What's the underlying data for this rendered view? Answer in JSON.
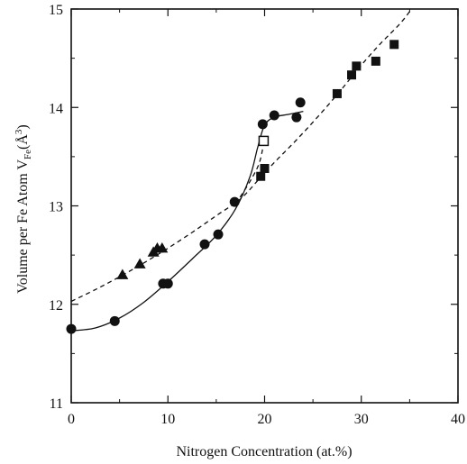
{
  "chart_data": {
    "type": "scatter",
    "title": "",
    "xlabel": "Nitrogen Concentration (at.%)",
    "ylabel_main": "Volume per Fe Atom V",
    "ylabel_sub": "Fe",
    "ylabel_unit": "(Å",
    "ylabel_sup": "3",
    "ylabel_close": ")",
    "xlim": [
      0,
      40
    ],
    "ylim": [
      11,
      15
    ],
    "x_ticks": [
      "0",
      "10",
      "20",
      "30",
      "40"
    ],
    "y_ticks": [
      "11",
      "12",
      "13",
      "14",
      "15"
    ],
    "grid": false,
    "legend": "none",
    "colors": {
      "ink": "#111111"
    },
    "series": [
      {
        "marker": "circle",
        "points": [
          [
            0.0,
            11.75
          ],
          [
            4.5,
            11.83
          ],
          [
            9.5,
            12.21
          ],
          [
            10.0,
            12.21
          ],
          [
            13.8,
            12.61
          ],
          [
            15.2,
            12.71
          ],
          [
            16.9,
            13.04
          ],
          [
            19.8,
            13.83
          ],
          [
            21.0,
            13.92
          ],
          [
            23.3,
            13.9
          ],
          [
            23.7,
            14.05
          ]
        ]
      },
      {
        "marker": "triangle",
        "points": [
          [
            5.3,
            12.3
          ],
          [
            7.1,
            12.41
          ],
          [
            8.5,
            12.53
          ],
          [
            8.9,
            12.57
          ],
          [
            9.4,
            12.57
          ]
        ]
      },
      {
        "marker": "square",
        "points": [
          [
            19.6,
            13.3
          ],
          [
            20.0,
            13.38
          ],
          [
            27.5,
            14.14
          ],
          [
            29.0,
            14.33
          ],
          [
            29.5,
            14.42
          ],
          [
            31.5,
            14.47
          ],
          [
            33.4,
            14.64
          ]
        ]
      },
      {
        "marker": "open-square",
        "points": [
          [
            19.9,
            13.66
          ]
        ]
      }
    ],
    "curves": [
      {
        "style": "solid",
        "points": [
          [
            0.0,
            11.73
          ],
          [
            2.5,
            11.76
          ],
          [
            5.0,
            11.86
          ],
          [
            7.5,
            12.02
          ],
          [
            10.0,
            12.23
          ],
          [
            12.5,
            12.46
          ],
          [
            15.0,
            12.7
          ],
          [
            17.0,
            12.97
          ],
          [
            18.5,
            13.3
          ],
          [
            19.3,
            13.6
          ],
          [
            20.0,
            13.82
          ],
          [
            21.0,
            13.9
          ],
          [
            22.5,
            13.93
          ],
          [
            24.0,
            13.96
          ]
        ]
      },
      {
        "style": "dashed",
        "points": [
          [
            0.0,
            12.03
          ],
          [
            2.5,
            12.15
          ],
          [
            5.0,
            12.28
          ],
          [
            7.5,
            12.42
          ],
          [
            10.0,
            12.57
          ],
          [
            12.5,
            12.73
          ],
          [
            15.0,
            12.9
          ],
          [
            17.5,
            13.07
          ],
          [
            19.5,
            13.28
          ],
          [
            21.0,
            13.44
          ],
          [
            23.0,
            13.64
          ],
          [
            25.0,
            13.85
          ],
          [
            27.5,
            14.13
          ],
          [
            30.0,
            14.43
          ],
          [
            32.0,
            14.65
          ],
          [
            34.0,
            14.85
          ],
          [
            35.2,
            15.0
          ]
        ]
      },
      {
        "style": "dashed",
        "points": [
          [
            17.0,
            13.02
          ],
          [
            18.5,
            13.25
          ],
          [
            19.5,
            13.45
          ],
          [
            20.0,
            13.7
          ]
        ]
      }
    ]
  }
}
